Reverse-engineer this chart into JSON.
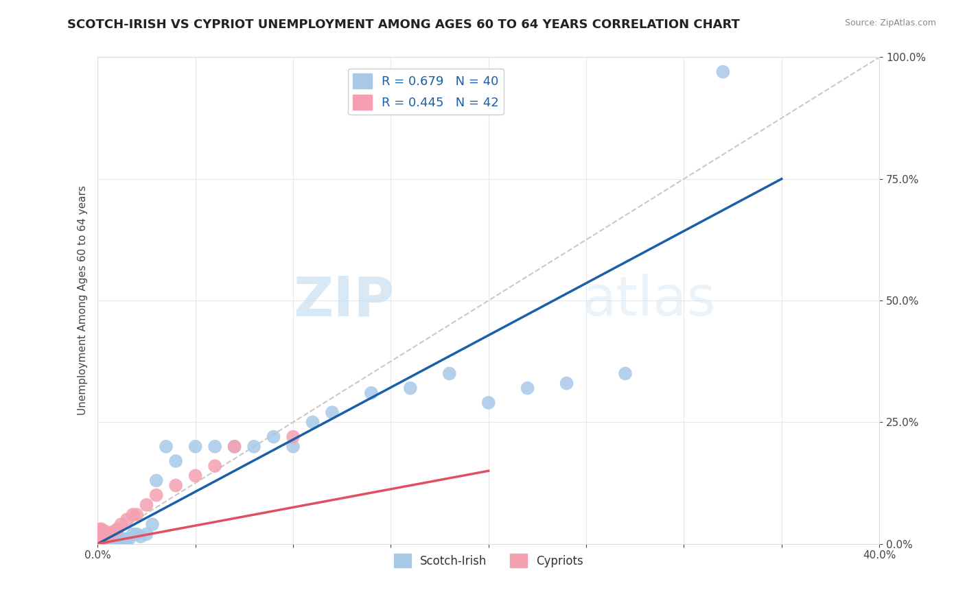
{
  "title": "SCOTCH-IRISH VS CYPRIOT UNEMPLOYMENT AMONG AGES 60 TO 64 YEARS CORRELATION CHART",
  "source": "Source: ZipAtlas.com",
  "ylabel_label": "Unemployment Among Ages 60 to 64 years",
  "xlim": [
    0.0,
    0.4
  ],
  "ylim": [
    0.0,
    1.0
  ],
  "xticks": [
    0.0,
    0.05,
    0.1,
    0.15,
    0.2,
    0.25,
    0.3,
    0.35,
    0.4
  ],
  "yticks": [
    0.0,
    0.25,
    0.5,
    0.75,
    1.0
  ],
  "scotch_irish_x": [
    0.001,
    0.002,
    0.003,
    0.004,
    0.005,
    0.006,
    0.007,
    0.008,
    0.009,
    0.01,
    0.011,
    0.012,
    0.013,
    0.014,
    0.015,
    0.016,
    0.018,
    0.02,
    0.022,
    0.025,
    0.028,
    0.03,
    0.035,
    0.04,
    0.05,
    0.06,
    0.07,
    0.08,
    0.09,
    0.1,
    0.11,
    0.12,
    0.14,
    0.16,
    0.18,
    0.2,
    0.22,
    0.24,
    0.27,
    0.32
  ],
  "scotch_irish_y": [
    0.005,
    0.01,
    0.005,
    0.01,
    0.01,
    0.01,
    0.01,
    0.015,
    0.01,
    0.01,
    0.01,
    0.01,
    0.01,
    0.01,
    0.01,
    0.01,
    0.02,
    0.02,
    0.015,
    0.02,
    0.04,
    0.13,
    0.2,
    0.17,
    0.2,
    0.2,
    0.2,
    0.2,
    0.22,
    0.2,
    0.25,
    0.27,
    0.31,
    0.32,
    0.35,
    0.29,
    0.32,
    0.33,
    0.35,
    0.97
  ],
  "cypriot_x": [
    0.001,
    0.001,
    0.001,
    0.001,
    0.001,
    0.001,
    0.001,
    0.001,
    0.001,
    0.001,
    0.001,
    0.001,
    0.001,
    0.001,
    0.001,
    0.002,
    0.002,
    0.002,
    0.002,
    0.002,
    0.002,
    0.003,
    0.003,
    0.003,
    0.004,
    0.004,
    0.004,
    0.005,
    0.006,
    0.008,
    0.01,
    0.012,
    0.015,
    0.018,
    0.02,
    0.025,
    0.03,
    0.04,
    0.05,
    0.06,
    0.07,
    0.1
  ],
  "cypriot_y": [
    0.005,
    0.005,
    0.005,
    0.01,
    0.01,
    0.01,
    0.01,
    0.01,
    0.01,
    0.015,
    0.015,
    0.02,
    0.02,
    0.025,
    0.03,
    0.01,
    0.01,
    0.015,
    0.02,
    0.025,
    0.03,
    0.01,
    0.015,
    0.02,
    0.015,
    0.02,
    0.025,
    0.02,
    0.02,
    0.025,
    0.03,
    0.04,
    0.05,
    0.06,
    0.06,
    0.08,
    0.1,
    0.12,
    0.14,
    0.16,
    0.2,
    0.22
  ],
  "blue_color": "#a8c8e8",
  "pink_color": "#f4a0b0",
  "blue_line_color": "#1a5fa8",
  "pink_line_color": "#e05060",
  "ref_line_color": "#c8c8c8",
  "legend_r1": "R = 0.679",
  "legend_n1": "N = 40",
  "legend_r2": "R = 0.445",
  "legend_n2": "N = 42",
  "title_fontsize": 13,
  "label_fontsize": 11,
  "tick_fontsize": 11
}
